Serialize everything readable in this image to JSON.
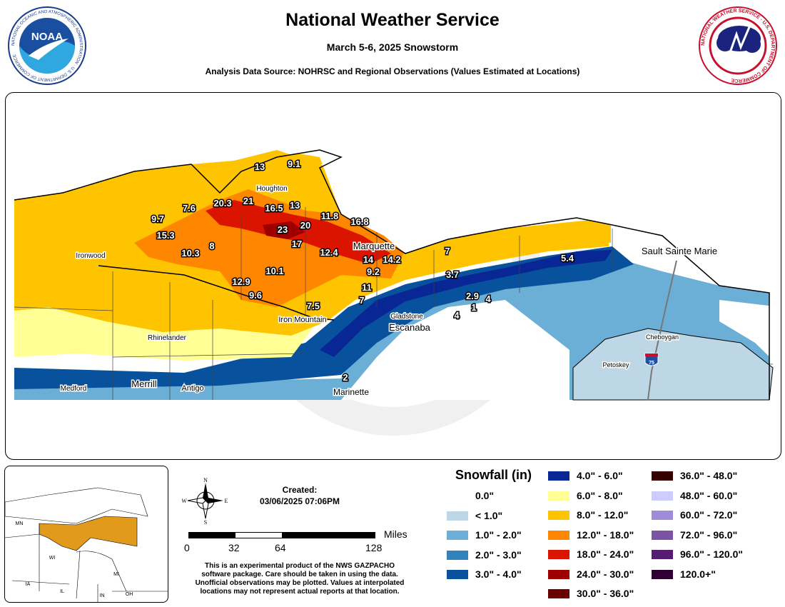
{
  "header": {
    "title": "National Weather Service",
    "subtitle": "March 5-6, 2025 Snowstorm",
    "source": "Analysis Data Source: NOHRSC and Regional Observations (Values Estimated at Locations)"
  },
  "logos": {
    "noaa_text": "NOAA",
    "noaa_ring": "NATIONAL OCEANIC AND ATMOSPHERIC ADMINISTRATION · U.S. DEPARTMENT OF COMMERCE",
    "nws_ring": "NATIONAL WEATHER SERVICE · U.S. DEPARTMENT OF COMMERCE"
  },
  "map": {
    "snow_labels": [
      "13",
      "9.1",
      "20.3",
      "21",
      "16.5",
      "13",
      "7.6",
      "9.7",
      "15.3",
      "11.8",
      "16.8",
      "23",
      "20",
      "10.3",
      "8",
      "17",
      "12.4",
      "14",
      "14.2",
      "7",
      "9.2",
      "5.4",
      "3.7",
      "12.9",
      "10.1",
      "11",
      "9.6",
      "7",
      "2.9",
      "4",
      "7.5",
      "4",
      "1",
      "2"
    ],
    "cities": [
      "Houghton",
      "Ironwood",
      "Marquette",
      "Sault Sainte Marie",
      "Rhinelander",
      "Iron Mountain",
      "Gladstone",
      "Escanaba",
      "Cheboygan",
      "Petoskey",
      "Medford",
      "Merrill",
      "Antigo",
      "Marinette"
    ],
    "highway_shield": "75"
  },
  "inset": {
    "states": [
      "MN",
      "WI",
      "MI",
      "IA",
      "IL",
      "IN",
      "OH"
    ]
  },
  "compass": {
    "n": "N",
    "s": "S",
    "e": "E",
    "w": "W"
  },
  "created": {
    "label": "Created:",
    "value": "03/06/2025 07:06PM"
  },
  "scale": {
    "unit": "Miles",
    "ticks": [
      "0",
      "32",
      "64",
      "128"
    ]
  },
  "disclaimer": [
    "This is an experimental product of the NWS GAZPACHO",
    "software package. Care should be taken in using the data.",
    "Unofficial observations may be plotted. Values at interpolated",
    "locations may not represent actual reports at that location."
  ],
  "legend": {
    "title": "Snowfall (in)",
    "items": [
      {
        "label": "0.0\"",
        "color": "#ffffff"
      },
      {
        "label": "< 1.0\"",
        "color": "#bdd7e7"
      },
      {
        "label": "1.0\" - 2.0\"",
        "color": "#6baed6"
      },
      {
        "label": "2.0\" - 3.0\"",
        "color": "#3182bd"
      },
      {
        "label": "3.0\" - 4.0\"",
        "color": "#08519c"
      },
      {
        "label": "4.0\" - 6.0\"",
        "color": "#082694"
      },
      {
        "label": "6.0\" - 8.0\"",
        "color": "#ffff96"
      },
      {
        "label": "8.0\" - 12.0\"",
        "color": "#ffc400"
      },
      {
        "label": "12.0\" - 18.0\"",
        "color": "#ff8700"
      },
      {
        "label": "18.0\" - 24.0\"",
        "color": "#db1400"
      },
      {
        "label": "24.0\" - 30.0\"",
        "color": "#9e0000"
      },
      {
        "label": "30.0\" - 36.0\"",
        "color": "#690000"
      },
      {
        "label": "36.0\" - 48.0\"",
        "color": "#360000"
      },
      {
        "label": "48.0\" - 60.0\"",
        "color": "#ccccff"
      },
      {
        "label": "60.0\" - 72.0\"",
        "color": "#9f8cd8"
      },
      {
        "label": "72.0\" - 96.0\"",
        "color": "#7c52a5"
      },
      {
        "label": "96.0\" - 120.0\"",
        "color": "#561c72"
      },
      {
        "label": "120.0+\"",
        "color": "#2e0033"
      }
    ]
  }
}
